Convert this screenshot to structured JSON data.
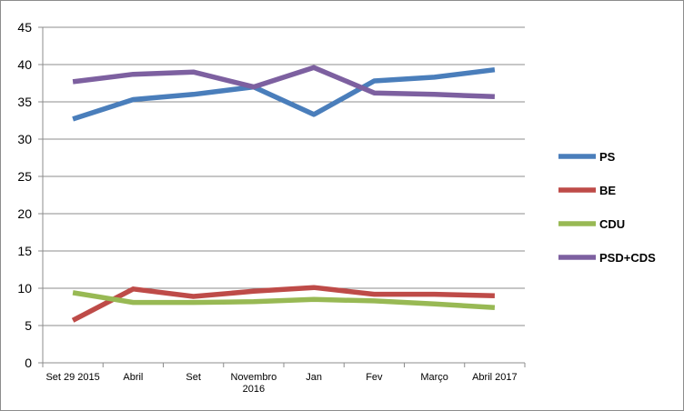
{
  "chart_data": {
    "type": "line",
    "title": "",
    "xlabel": "",
    "ylabel": "",
    "categories": [
      "Set 29 2015",
      "Abril",
      "Set",
      "Novembro 2016",
      "Jan",
      "Fev",
      "Março",
      "Abril 2017"
    ],
    "category_lines": [
      [
        "Set 29 2015"
      ],
      [
        "Abril"
      ],
      [
        "Set"
      ],
      [
        "Novembro",
        "2016"
      ],
      [
        "Jan"
      ],
      [
        "Fev"
      ],
      [
        "Março"
      ],
      [
        "Abril 2017"
      ]
    ],
    "ylim": [
      0,
      45
    ],
    "yticks": [
      0,
      5,
      10,
      15,
      20,
      25,
      30,
      35,
      40,
      45
    ],
    "grid": "horizontal",
    "legend_position": "right",
    "series": [
      {
        "name": "PS",
        "color": "#4a7ebb",
        "values": [
          32.7,
          35.3,
          36.0,
          37.0,
          33.3,
          37.8,
          38.3,
          39.3
        ]
      },
      {
        "name": "BE",
        "color": "#be4b48",
        "values": [
          5.7,
          9.9,
          8.9,
          9.6,
          10.1,
          9.2,
          9.2,
          9.0
        ]
      },
      {
        "name": "CDU",
        "color": "#98b954",
        "values": [
          9.4,
          8.1,
          8.1,
          8.2,
          8.5,
          8.3,
          7.9,
          7.4
        ]
      },
      {
        "name": "PSD+CDS",
        "color": "#7d60a0",
        "values": [
          37.7,
          38.7,
          39.0,
          37.0,
          39.6,
          36.2,
          36.0,
          35.7
        ]
      }
    ]
  }
}
